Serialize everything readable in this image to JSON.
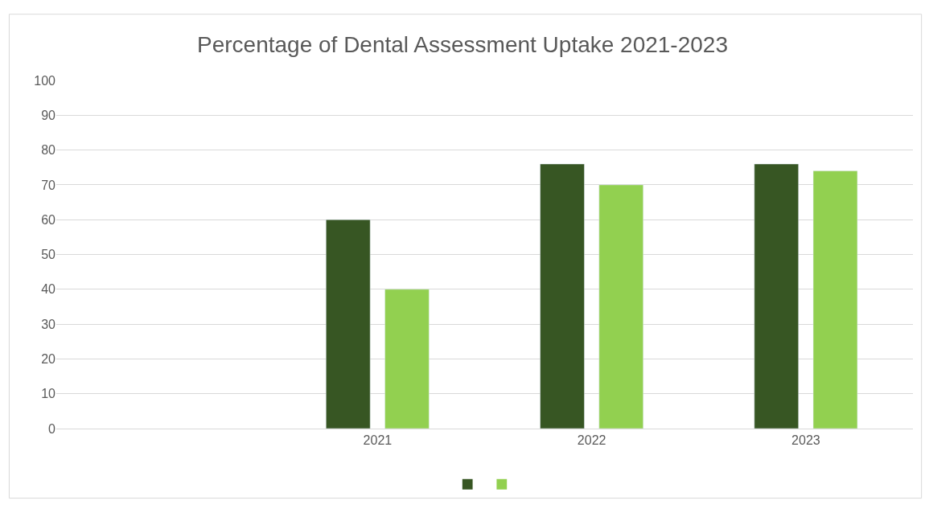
{
  "chart_data": {
    "type": "bar",
    "title": "Percentage of Dental Assessment Uptake 2021-2023",
    "categories": [
      null,
      "2021",
      "2022",
      "2023"
    ],
    "series": [
      {
        "color": "#375623",
        "values": [
          null,
          60,
          76,
          76
        ]
      },
      {
        "color": "#92d050",
        "values": [
          null,
          40,
          70,
          74
        ]
      }
    ],
    "ylim": [
      0,
      100
    ],
    "yticks": [
      0,
      10,
      20,
      30,
      40,
      50,
      60,
      70,
      80,
      90,
      100
    ],
    "grid": "y"
  }
}
